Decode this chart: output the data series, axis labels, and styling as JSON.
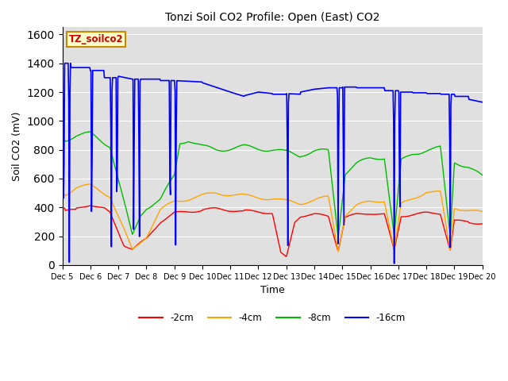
{
  "title": "Tonzi Soil CO2 Profile: Open (East) CO2",
  "ylabel": "Soil CO2 (mV)",
  "xlabel": "Time",
  "ylim": [
    0,
    1650
  ],
  "yticks": [
    0,
    200,
    400,
    600,
    800,
    1000,
    1200,
    1400,
    1600
  ],
  "legend_label": "TZ_soilco2",
  "line_colors": {
    "2cm": "#ff0000",
    "4cm": "#ffa500",
    "8cm": "#00bb00",
    "16cm": "#0000ff"
  },
  "legend_colors": {
    "-2cm": "#ff0000",
    "-4cm": "#ffa500",
    "-8cm": "#00bb00",
    "-16cm": "#0000ff"
  },
  "bg_color": "#e0e0e0",
  "box_bg": "#ffffcc",
  "box_border": "#cc8800",
  "fig_width": 6.4,
  "fig_height": 4.8,
  "dpi": 100
}
